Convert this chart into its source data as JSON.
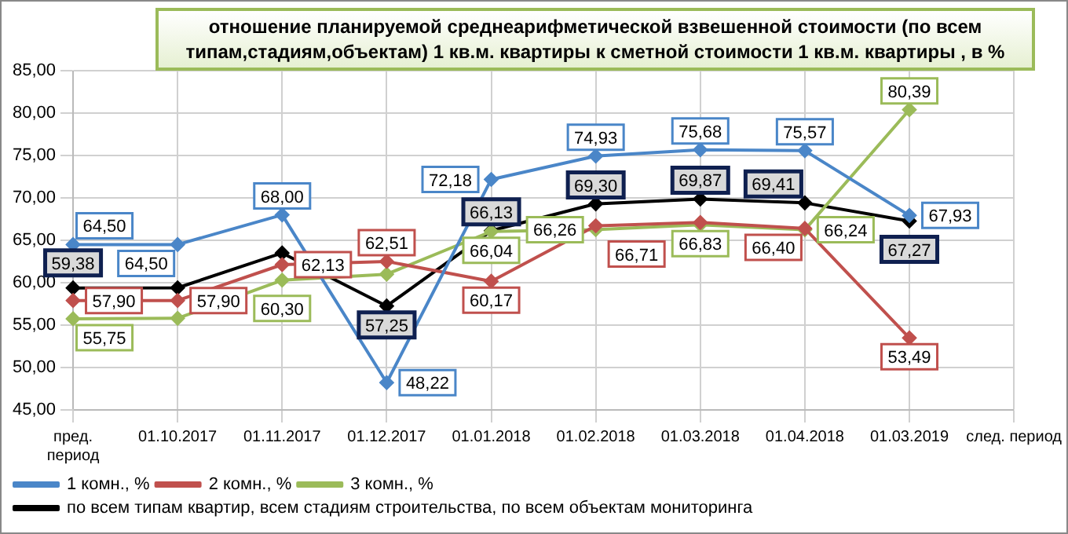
{
  "chart_data": {
    "type": "line",
    "title": "отношение  планируемой среднеарифметической взвешенной стоимости  (по всем типам,стадиям,объектам) 1 кв.м.  квартиры  к сметной стоимости 1 кв.м. квартиры , в %",
    "categories": [
      "пред. период",
      "01.10.2017",
      "01.11.2017",
      "01.12.2017",
      "01.01.2018",
      "01.02.2018",
      "01.03.2018",
      "01.04.2018",
      "01.03.2019",
      "след. период"
    ],
    "series": [
      {
        "name": "1 комн., %",
        "color": "#4a86c8",
        "values": [
          64.5,
          64.5,
          68.0,
          48.22,
          72.18,
          74.93,
          75.68,
          75.57,
          67.93,
          null
        ],
        "value_labels": [
          "64,50",
          "64,50",
          "68,00",
          "48,22",
          "72,18",
          "74,93",
          "75,68",
          "75,57",
          "67,93",
          null
        ]
      },
      {
        "name": "2 комн., %",
        "color": "#c0504d",
        "values": [
          57.9,
          57.9,
          62.13,
          62.51,
          60.17,
          66.71,
          67.1,
          66.4,
          53.49,
          null
        ],
        "value_labels": [
          "57,90",
          "57,90",
          "62,13",
          "62,51",
          "60,17",
          "66,71",
          null,
          "66,40",
          "53,49",
          null
        ]
      },
      {
        "name": "3 комн., %",
        "color": "#9bbb59",
        "values": [
          55.75,
          55.8,
          60.3,
          61.0,
          66.04,
          66.26,
          66.83,
          66.24,
          80.39,
          null
        ],
        "value_labels": [
          "55,75",
          null,
          "60,30",
          null,
          "66,04",
          "66,26",
          "66,83",
          "66,24",
          "80,39",
          null
        ]
      },
      {
        "name": "по всем типам квартир, всем стадиям строительства, по всем объектам мониторинга",
        "color": "#000000",
        "values": [
          59.38,
          59.4,
          63.5,
          57.25,
          66.13,
          69.3,
          69.87,
          69.41,
          67.27,
          null
        ],
        "value_labels": [
          "59,38",
          null,
          null,
          "57,25",
          "66,13",
          "69,30",
          "69,87",
          "69,41",
          "67,27",
          null
        ]
      }
    ],
    "ylim": [
      45,
      85
    ],
    "yticks": [
      {
        "value": 45,
        "label": "45,00"
      },
      {
        "value": 50,
        "label": "50,00"
      },
      {
        "value": 55,
        "label": "55,00"
      },
      {
        "value": 60,
        "label": "60,00"
      },
      {
        "value": 65,
        "label": "65,00"
      },
      {
        "value": 70,
        "label": "70,00"
      },
      {
        "value": 75,
        "label": "75,00"
      },
      {
        "value": 80,
        "label": "80,00"
      },
      {
        "value": 85,
        "label": "85,00"
      }
    ],
    "grid": true,
    "legend": "bottom",
    "marker": "diamond",
    "line_style": "solid"
  }
}
